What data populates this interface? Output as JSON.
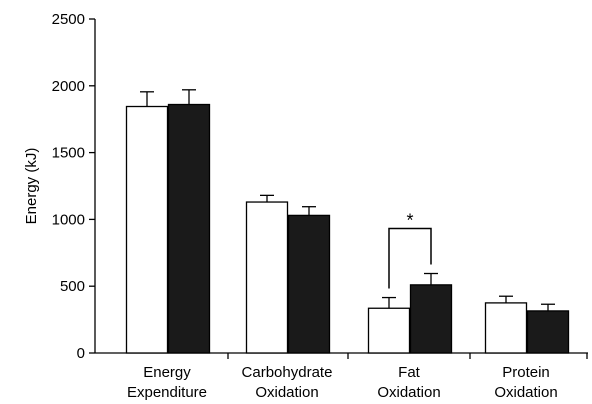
{
  "chart_data": {
    "type": "bar",
    "title": "",
    "xlabel": "",
    "ylabel": "Energy (kJ)",
    "ylim": [
      0,
      2500
    ],
    "yticks": [
      0,
      500,
      1000,
      1500,
      2000,
      2500
    ],
    "categories": [
      [
        "Energy",
        "Expenditure"
      ],
      [
        "Carbohydrate",
        "Oxidation"
      ],
      [
        "Fat",
        "Oxidation"
      ],
      [
        "Protein",
        "Oxidation"
      ]
    ],
    "series": [
      {
        "color": "#ffffff",
        "values": [
          1845,
          1130,
          335,
          375
        ],
        "errors": [
          110,
          50,
          80,
          50
        ]
      },
      {
        "color": "#1a1a1a",
        "values": [
          1860,
          1030,
          510,
          315
        ],
        "errors": [
          110,
          65,
          85,
          50
        ]
      }
    ],
    "annotations": [
      {
        "text": "*",
        "category_index": 2
      }
    ],
    "grid": false,
    "legend": "none"
  }
}
